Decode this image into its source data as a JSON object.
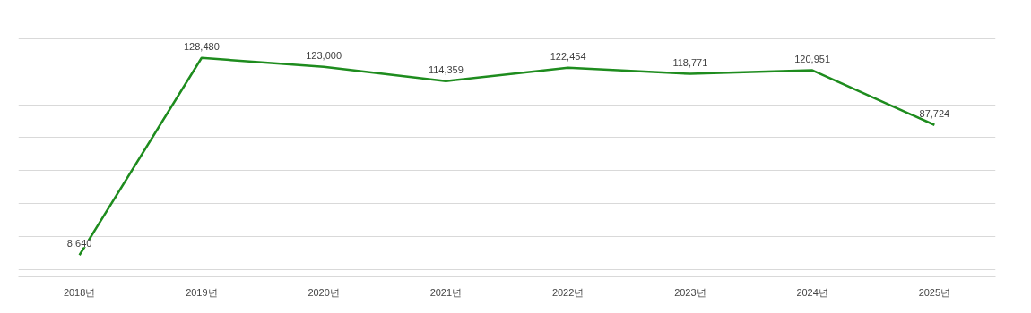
{
  "chart_data": {
    "type": "line",
    "categories": [
      "2018년",
      "2019년",
      "2020년",
      "2021년",
      "2022년",
      "2023년",
      "2024년",
      "2025년"
    ],
    "series": [
      {
        "color": "#1e8c1e",
        "values": [
          8640,
          128480,
          123000,
          114359,
          122454,
          118771,
          120951,
          87724
        ],
        "value_labels": [
          "8,640",
          "128,480",
          "123,000",
          "114,359",
          "122,454",
          "118,771",
          "120,951",
          "87,724"
        ]
      }
    ],
    "tick_labels": "x",
    "grid": "y",
    "marker": "none",
    "line_style": "solid"
  }
}
